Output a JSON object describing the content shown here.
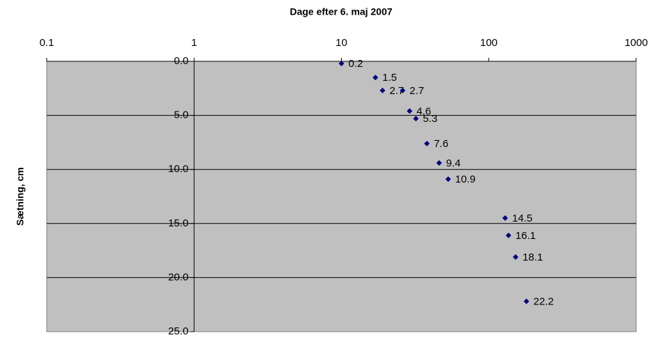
{
  "chart_data": {
    "type": "scatter",
    "x_label": "Dage efter 6. maj 2007",
    "y_label": "Sætning, cm",
    "x": [
      10,
      17,
      19,
      26,
      29,
      32,
      38,
      46,
      53,
      129,
      136,
      152,
      180
    ],
    "series": [
      {
        "color": "#000080",
        "values": [
          0.2,
          1.5,
          2.7,
          2.7,
          4.6,
          5.3,
          7.6,
          9.4,
          10.9,
          14.5,
          16.1,
          18.1,
          22.2
        ]
      }
    ],
    "x_scale": "log",
    "xlim": [
      0.1,
      1000
    ],
    "xticks": [
      0.1,
      1,
      10,
      100,
      1000
    ],
    "x_axis_position": "top",
    "ylim": [
      0,
      25
    ],
    "y_reversed": true,
    "yticks": [
      {
        "value": 0,
        "label": "0.0"
      },
      {
        "value": 5,
        "label": "5.0"
      },
      {
        "value": 10,
        "label": "10.0"
      },
      {
        "value": 15,
        "label": "15.0"
      },
      {
        "value": 20,
        "label": "20.0"
      },
      {
        "value": 25,
        "label": "25.0"
      }
    ],
    "y_axis_at_x": 1,
    "grid": true,
    "plot_background": "#c0c0c0"
  }
}
